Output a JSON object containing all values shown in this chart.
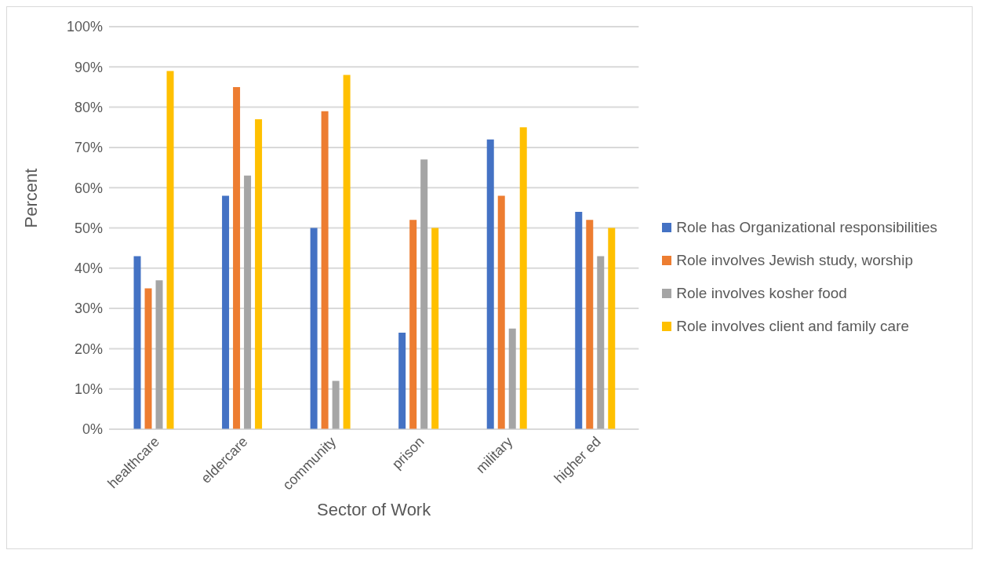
{
  "chart_data": {
    "type": "bar",
    "xlabel": "Sector of Work",
    "ylabel": "Percent",
    "categories": [
      "healthcare",
      "eldercare",
      "community",
      "prison",
      "military",
      "higher ed"
    ],
    "series": [
      {
        "name": "Role has Organizational responsibilities",
        "color": "#4472c4",
        "values": [
          43,
          58,
          50,
          24,
          72,
          54
        ]
      },
      {
        "name": "Role involves Jewish study, worship",
        "color": "#ed7d31",
        "values": [
          35,
          85,
          79,
          52,
          58,
          52
        ]
      },
      {
        "name": "Role involves kosher food",
        "color": "#a5a5a5",
        "values": [
          37,
          63,
          12,
          67,
          25,
          43
        ]
      },
      {
        "name": "Role involves client and family care",
        "color": "#ffc000",
        "values": [
          89,
          77,
          88,
          50,
          75,
          50
        ]
      }
    ],
    "ylim": [
      0,
      100
    ],
    "yticks": [
      {
        "value": 0,
        "label": "0%"
      },
      {
        "value": 10,
        "label": "10%"
      },
      {
        "value": 20,
        "label": "20%"
      },
      {
        "value": 30,
        "label": "30%"
      },
      {
        "value": 40,
        "label": "40%"
      },
      {
        "value": 50,
        "label": "50%"
      },
      {
        "value": 60,
        "label": "60%"
      },
      {
        "value": 70,
        "label": "70%"
      },
      {
        "value": 80,
        "label": "80%"
      },
      {
        "value": 90,
        "label": "90%"
      },
      {
        "value": 100,
        "label": "100%"
      }
    ],
    "grid": "y",
    "legend": "right"
  }
}
